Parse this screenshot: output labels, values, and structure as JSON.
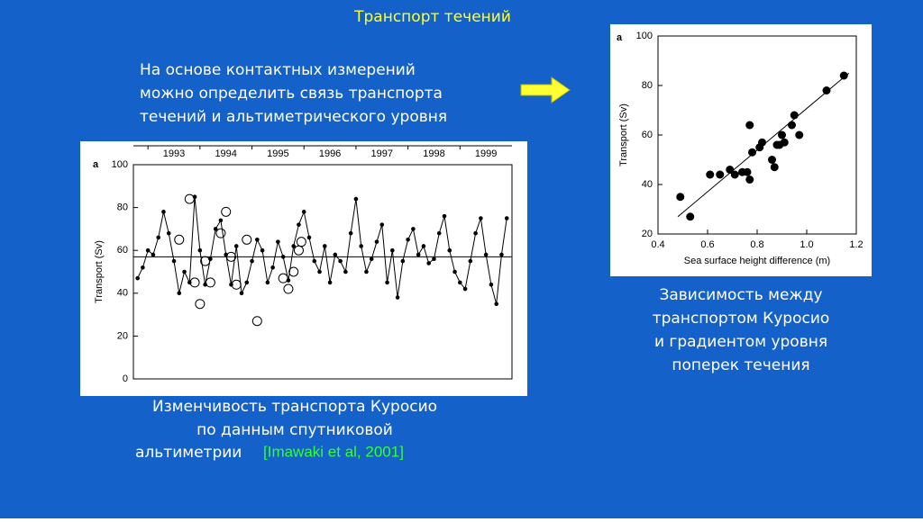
{
  "header": {
    "title": "Транспорт течений"
  },
  "intro": [
    "На основе контактных измерений",
    "можно определить связь транспорта",
    "течений и альтиметрического уровня"
  ],
  "left_caption": {
    "lines": [
      "Изменчивость транспорта Куросио",
      "по данным спутниковой",
      "альтиметрии"
    ],
    "citation": "[Imawaki et al, 2001]"
  },
  "right_caption": [
    "Зависимость между",
    "транспортом Куросио",
    "и градиентом уровня",
    "поперек течения"
  ],
  "chart_data": [
    {
      "type": "line",
      "panel": "a",
      "y_label": "Transport (Sv)",
      "xlim": [
        1992.72,
        2000.0
      ],
      "xticks": [
        1993,
        1994,
        1995,
        1996,
        1997,
        1998,
        1999
      ],
      "ylim": [
        0,
        100
      ],
      "yticks": [
        0,
        20,
        40,
        60,
        80,
        100
      ],
      "reference_line": 57,
      "series": [
        {
          "color": "#000000",
          "marker": "dot",
          "line": true,
          "x": [
            1992.8,
            1992.9,
            1993.0,
            1993.1,
            1993.2,
            1993.3,
            1993.4,
            1993.5,
            1993.6,
            1993.7,
            1993.8,
            1993.9,
            1994.0,
            1994.1,
            1994.2,
            1994.3,
            1994.4,
            1994.5,
            1994.6,
            1994.7,
            1994.8,
            1994.9,
            1995.0,
            1995.1,
            1995.2,
            1995.3,
            1995.4,
            1995.5,
            1995.6,
            1995.7,
            1995.8,
            1995.9,
            1996.0,
            1996.1,
            1996.2,
            1996.3,
            1996.4,
            1996.5,
            1996.6,
            1996.7,
            1996.8,
            1996.9,
            1997.0,
            1997.1,
            1997.2,
            1997.3,
            1997.4,
            1997.5,
            1997.6,
            1997.7,
            1997.8,
            1997.9,
            1998.0,
            1998.1,
            1998.2,
            1998.3,
            1998.4,
            1998.5,
            1998.6,
            1998.7,
            1998.8,
            1998.9,
            1999.0,
            1999.1,
            1999.2,
            1999.3,
            1999.4,
            1999.5,
            1999.6,
            1999.7,
            1999.8,
            1999.9
          ],
          "values": [
            47,
            52,
            60,
            58,
            66,
            78,
            68,
            55,
            40,
            50,
            45,
            85,
            60,
            44,
            56,
            70,
            74,
            58,
            44,
            62,
            40,
            45,
            55,
            65,
            60,
            45,
            52,
            64,
            57,
            46,
            62,
            72,
            78,
            66,
            55,
            50,
            62,
            45,
            58,
            55,
            50,
            68,
            84,
            62,
            50,
            56,
            64,
            72,
            45,
            60,
            38,
            55,
            65,
            70,
            58,
            62,
            54,
            56,
            68,
            76,
            60,
            50,
            45,
            42,
            55,
            68,
            75,
            58,
            44,
            35,
            58,
            75
          ]
        },
        {
          "color": "#000000",
          "marker": "circle",
          "line": false,
          "x": [
            1993.6,
            1993.8,
            1993.9,
            1994.0,
            1994.1,
            1994.2,
            1994.4,
            1994.5,
            1994.6,
            1994.7,
            1994.9,
            1995.1,
            1995.6,
            1995.7,
            1995.8,
            1995.9,
            1995.95
          ],
          "values": [
            65,
            84,
            45,
            35,
            55,
            45,
            68,
            78,
            57,
            44,
            65,
            27,
            47,
            42,
            50,
            60,
            64
          ]
        }
      ]
    },
    {
      "type": "scatter",
      "panel": "a",
      "x_label": "Sea surface height difference (m)",
      "y_label": "Transport (Sv)",
      "xlim": [
        0.4,
        1.2
      ],
      "xticks": [
        0.4,
        0.6,
        0.8,
        {
          "value": 1,
          "label": "1.0"
        },
        1.2
      ],
      "ylim": [
        20,
        100
      ],
      "yticks": [
        20,
        40,
        60,
        80,
        100
      ],
      "trend_line": {
        "x": [
          0.48,
          1.17
        ],
        "y": [
          27,
          85
        ]
      },
      "series": [
        {
          "color": "#000000",
          "x": [
            0.49,
            0.53,
            0.61,
            0.65,
            0.69,
            0.71,
            0.74,
            0.76,
            0.77,
            0.77,
            0.78,
            0.81,
            0.82,
            0.86,
            0.87,
            0.88,
            0.89,
            0.9,
            0.91,
            0.94,
            0.95,
            0.97,
            1.08,
            1.15
          ],
          "values": [
            35,
            27,
            44,
            44,
            46,
            44,
            45,
            45,
            42,
            64,
            53,
            55,
            57,
            50,
            47,
            56,
            56,
            60,
            57,
            64,
            68,
            60,
            78,
            84
          ]
        }
      ]
    }
  ]
}
